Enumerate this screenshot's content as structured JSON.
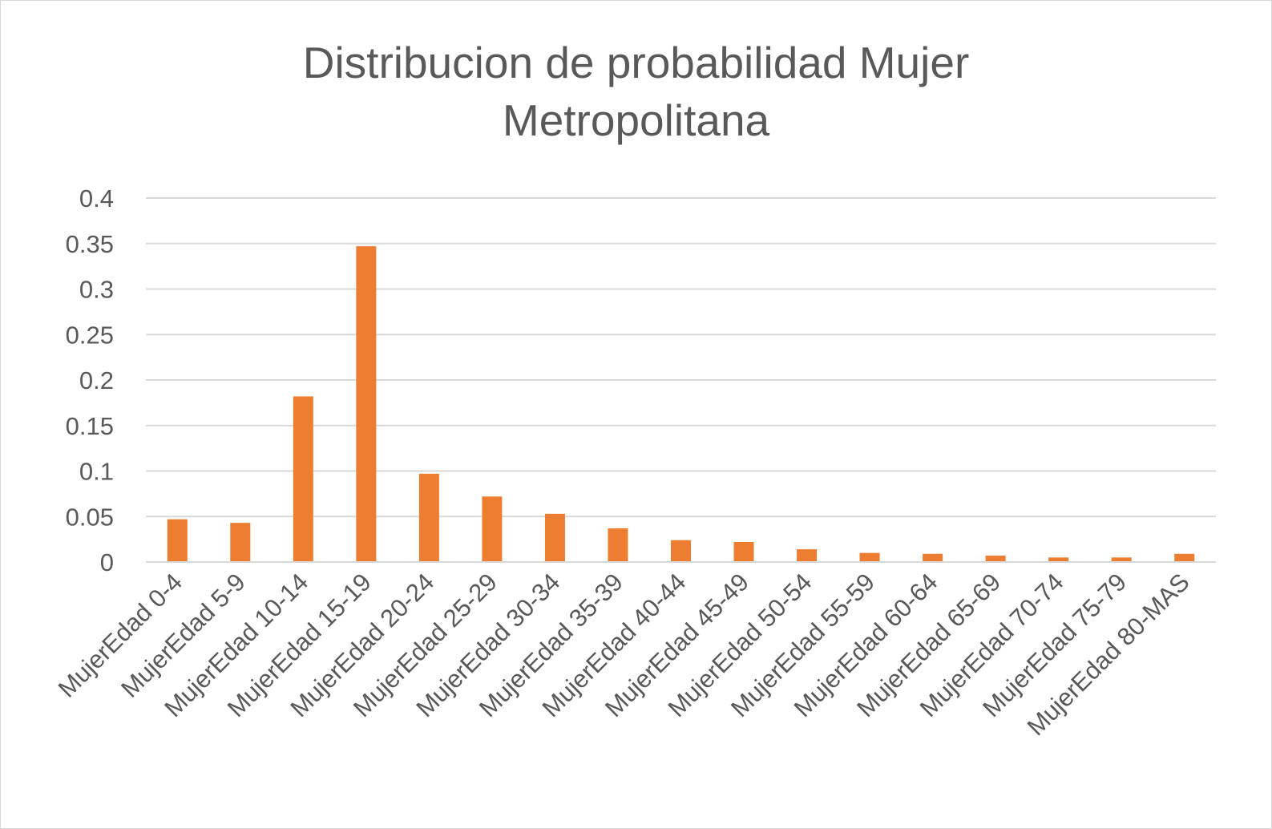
{
  "chart_data": {
    "type": "bar",
    "title_lines": [
      "Distribucion de probabilidad Mujer",
      "Metropolitana"
    ],
    "xlabel": "",
    "ylabel": "",
    "categories": [
      "MujerEdad 0-4",
      "MujerEdad 5-9",
      "MujerEdad 10-14",
      "MujerEdad 15-19",
      "MujerEdad 20-24",
      "MujerEdad 25-29",
      "MujerEdad 30-34",
      "MujerEdad 35-39",
      "MujerEdad 40-44",
      "MujerEdad 45-49",
      "MujerEdad 50-54",
      "MujerEdad 55-59",
      "MujerEdad 60-64",
      "MujerEdad 65-69",
      "MujerEdad 70-74",
      "MujerEdad 75-79",
      "MujerEdad 80-MAS"
    ],
    "values": [
      0.047,
      0.043,
      0.182,
      0.347,
      0.097,
      0.072,
      0.053,
      0.037,
      0.024,
      0.022,
      0.014,
      0.01,
      0.009,
      0.007,
      0.005,
      0.005,
      0.009
    ],
    "ylim": [
      0,
      0.4
    ],
    "yticks": [
      "0",
      "0.05",
      "0.1",
      "0.15",
      "0.2",
      "0.25",
      "0.3",
      "0.35",
      "0.4"
    ],
    "ytick_values": [
      0,
      0.05,
      0.1,
      0.15,
      0.2,
      0.25,
      0.3,
      0.35,
      0.4
    ],
    "grid": true,
    "legend": "none",
    "bar_color": "#ED7D31",
    "grid_color": "#D9D9D9",
    "text_color": "#595959"
  }
}
